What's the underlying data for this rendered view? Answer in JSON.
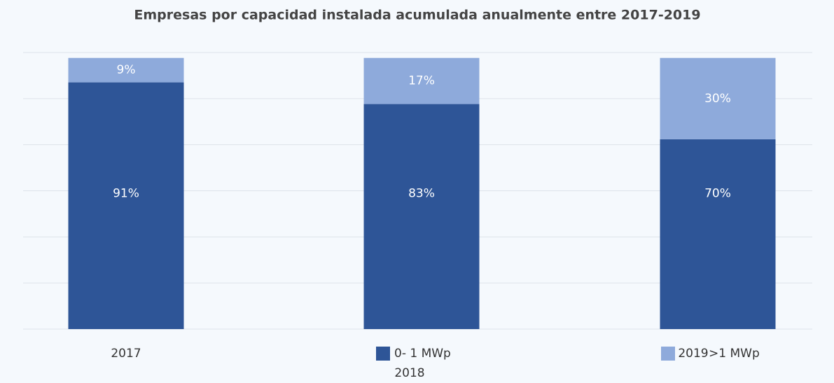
{
  "chart_data": {
    "type": "stacked_bar",
    "title": "Empresas por capacidad instalada acumulada anualmente entre 2017-2019",
    "categories": [
      "2017",
      "2018",
      "2019"
    ],
    "series": [
      {
        "name": "0- 1 MWp",
        "color": "#2e5597",
        "values": [
          91,
          83,
          70
        ],
        "value_labels": [
          "91%",
          "83%",
          "70%"
        ]
      },
      {
        "name": ">1 MWp",
        "color": "#8eaadb",
        "values": [
          9,
          17,
          30
        ],
        "value_labels": [
          "9%",
          "17%",
          "30%"
        ]
      }
    ],
    "ylim": [
      0,
      102
    ],
    "yticks": [
      0,
      17,
      34,
      51,
      68,
      85,
      102
    ],
    "grid": true
  }
}
